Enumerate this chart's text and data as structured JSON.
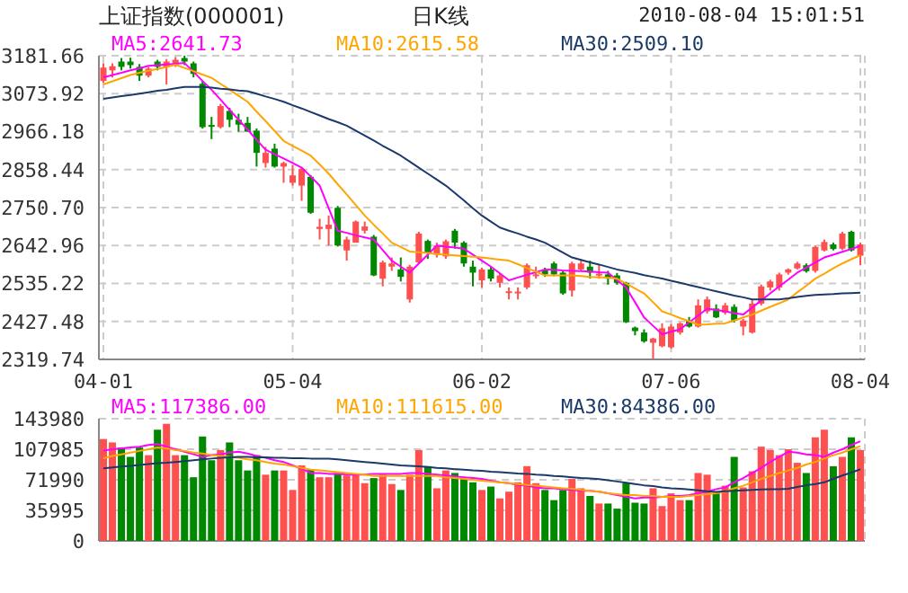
{
  "chart_data": [
    {
      "type": "candlestick",
      "title": "上证指数(000001)",
      "subtitle": "日K线",
      "annotations": [
        "2010-08-04 15:01:51"
      ],
      "categories": [
        "04-01",
        null,
        null,
        null,
        null,
        null,
        null,
        null,
        null,
        null,
        null,
        null,
        null,
        null,
        null,
        null,
        null,
        null,
        null,
        null,
        null,
        "05-04",
        null,
        null,
        null,
        null,
        null,
        null,
        null,
        null,
        null,
        null,
        null,
        null,
        null,
        null,
        null,
        null,
        null,
        null,
        null,
        null,
        "06-02",
        null,
        null,
        null,
        null,
        null,
        null,
        null,
        null,
        null,
        null,
        null,
        null,
        null,
        null,
        null,
        null,
        null,
        null,
        null,
        null,
        "07-06",
        null,
        null,
        null,
        null,
        null,
        null,
        null,
        null,
        null,
        null,
        null,
        null,
        null,
        null,
        null,
        null,
        null,
        null,
        null,
        null,
        "08-04"
      ],
      "ylim": [
        2319.74,
        3181.66
      ],
      "yticks": [
        2319.74,
        2427.48,
        2535.22,
        2642.96,
        {
          "value": 2750.7,
          "label": "2750.70"
        },
        2858.44,
        2966.18,
        3073.92,
        3181.66
      ],
      "ohlc": [
        [
          3110,
          3160,
          3105,
          3148
        ],
        [
          3140,
          3160,
          3120,
          3152
        ],
        [
          3165,
          3175,
          3140,
          3150
        ],
        [
          3165,
          3176,
          3145,
          3155
        ],
        [
          3150,
          3158,
          3110,
          3125
        ],
        [
          3125,
          3150,
          3120,
          3145
        ],
        [
          3165,
          3170,
          3140,
          3150
        ],
        [
          3150,
          3172,
          3100,
          3165
        ],
        [
          3160,
          3178,
          3150,
          3170
        ],
        [
          3175,
          3181.66,
          3155,
          3165
        ],
        [
          3160,
          3165,
          3120,
          3130
        ],
        [
          3102,
          3110,
          2975,
          2979
        ],
        [
          2985,
          3008,
          2945,
          2980
        ],
        [
          2979,
          3045,
          2975,
          3039
        ],
        [
          3025,
          3034,
          2979,
          3000
        ],
        [
          3000,
          3017,
          2966,
          2986
        ],
        [
          2991,
          3008,
          2966,
          2966
        ],
        [
          2969,
          2975,
          2867,
          2906
        ],
        [
          2877,
          2923,
          2864,
          2906
        ],
        [
          2918,
          2932,
          2864,
          2867
        ],
        [
          2867,
          2881,
          2821,
          2877
        ],
        [
          2821,
          2872,
          2813,
          2842
        ],
        [
          2813,
          2865,
          2770,
          2860
        ],
        [
          2838,
          2843,
          2733,
          2736
        ],
        [
          2690,
          2719,
          2660,
          2696
        ],
        [
          2690,
          2728,
          2643,
          2702
        ],
        [
          2750,
          2755,
          2640,
          2643
        ],
        [
          2629,
          2668,
          2600,
          2660
        ],
        [
          2651,
          2714,
          2651,
          2711
        ],
        [
          2685,
          2711,
          2677,
          2697
        ],
        [
          2668,
          2673,
          2556,
          2558
        ],
        [
          2549,
          2600,
          2527,
          2595
        ],
        [
          2583,
          2609,
          2571,
          2592
        ],
        [
          2575,
          2609,
          2541,
          2554
        ],
        [
          2490,
          2588,
          2481,
          2583
        ],
        [
          2595,
          2682,
          2592,
          2677
        ],
        [
          2656,
          2660,
          2605,
          2622
        ],
        [
          2617,
          2651,
          2609,
          2643
        ],
        [
          2612,
          2660,
          2605,
          2655
        ],
        [
          2685,
          2690,
          2634,
          2651
        ],
        [
          2651,
          2655,
          2583,
          2592
        ],
        [
          2583,
          2600,
          2527,
          2566
        ],
        [
          2544,
          2580,
          2524,
          2575
        ],
        [
          2575,
          2583,
          2541,
          2549
        ],
        [
          2537,
          2565,
          2524,
          2558
        ],
        [
          2508,
          2524,
          2490,
          2513
        ],
        [
          2508,
          2524,
          2490,
          2512
        ],
        [
          2524,
          2592,
          2519,
          2587
        ],
        [
          2558,
          2583,
          2549,
          2561
        ],
        [
          2575,
          2580,
          2554,
          2561
        ],
        [
          2592,
          2597,
          2556,
          2561
        ],
        [
          2566,
          2570,
          2503,
          2507
        ],
        [
          2515,
          2597,
          2498,
          2592
        ],
        [
          2575,
          2600,
          2570,
          2592
        ],
        [
          2583,
          2600,
          2549,
          2566
        ],
        [
          2558,
          2588,
          2549,
          2563
        ],
        [
          2561,
          2571,
          2532,
          2549
        ],
        [
          2558,
          2565,
          2532,
          2537
        ],
        [
          2537,
          2540,
          2423,
          2425
        ],
        [
          2410,
          2413,
          2388,
          2400
        ],
        [
          2396,
          2405,
          2367,
          2371
        ],
        [
          2367,
          2381,
          2319.74,
          2379
        ],
        [
          2357,
          2422,
          2354,
          2408
        ],
        [
          2354,
          2420,
          2350,
          2413
        ],
        [
          2396,
          2425,
          2390,
          2422
        ],
        [
          2430,
          2440,
          2410,
          2413
        ],
        [
          2413,
          2490,
          2410,
          2473
        ],
        [
          2456,
          2498,
          2450,
          2490
        ],
        [
          2464,
          2476,
          2437,
          2439
        ],
        [
          2452,
          2480,
          2447,
          2473
        ],
        [
          2469,
          2476,
          2425,
          2430
        ],
        [
          2413,
          2435,
          2388,
          2430
        ],
        [
          2396,
          2490,
          2393,
          2478
        ],
        [
          2478,
          2532,
          2473,
          2527
        ],
        [
          2524,
          2546,
          2515,
          2541
        ],
        [
          2524,
          2566,
          2515,
          2561
        ],
        [
          2566,
          2578,
          2560,
          2575
        ],
        [
          2578,
          2597,
          2575,
          2592
        ],
        [
          2587,
          2592,
          2566,
          2570
        ],
        [
          2571,
          2643,
          2566,
          2639
        ],
        [
          2629,
          2660,
          2626,
          2653
        ],
        [
          2646,
          2651,
          2629,
          2633
        ],
        [
          2634,
          2682,
          2630,
          2677
        ],
        [
          2682,
          2685,
          2626,
          2629
        ],
        [
          2614,
          2651,
          2587,
          2646
        ]
      ],
      "colors": [
        "#ff5050",
        "#ff5050",
        "#008800",
        "#008800",
        "#008800",
        "#ff5050",
        "#008800",
        "#ff5050",
        "#ff5050",
        "#008800",
        "#008800",
        "#008800",
        "#008800",
        "#ff5050",
        "#008800",
        "#008800",
        "#008800",
        "#008800",
        "#ff5050",
        "#008800",
        "#ff5050",
        "#ff5050",
        "#ff5050",
        "#008800",
        "#ff5050",
        "#ff5050",
        "#008800",
        "#ff5050",
        "#ff5050",
        "#ff5050",
        "#008800",
        "#ff5050",
        "#ff5050",
        "#008800",
        "#ff5050",
        "#ff5050",
        "#008800",
        "#ff5050",
        "#ff5050",
        "#008800",
        "#008800",
        "#008800",
        "#ff5050",
        "#008800",
        "#ff5050",
        "#ff5050",
        "#ff5050",
        "#ff5050",
        "#ff5050",
        "#008800",
        "#008800",
        "#008800",
        "#ff5050",
        "#ff5050",
        "#008800",
        "#ff5050",
        "#008800",
        "#008800",
        "#008800",
        "#008800",
        "#008800",
        "#ff5050",
        "#ff5050",
        "#ff5050",
        "#ff5050",
        "#008800",
        "#ff5050",
        "#ff5050",
        "#008800",
        "#ff5050",
        "#008800",
        "#ff5050",
        "#ff5050",
        "#ff5050",
        "#ff5050",
        "#ff5050",
        "#ff5050",
        "#ff5050",
        "#008800",
        "#ff5050",
        "#ff5050",
        "#008800",
        "#ff5050",
        "#008800",
        "#ff5050"
      ],
      "series": [
        {
          "type": "line",
          "name": "MA5:2641.73",
          "color": "#ff00ff",
          "values": [
            3120,
            3127,
            3133,
            3140,
            3146,
            3153,
            3155,
            3157,
            3159,
            3161,
            3136,
            3110,
            3085,
            3057,
            3028,
            3000,
            2972,
            2943,
            2915,
            2902,
            2890,
            2877,
            2864,
            2839,
            2813,
            2749,
            2685,
            2679,
            2672,
            2666,
            2660,
            2630,
            2600,
            2583,
            2566,
            2592,
            2617,
            2643,
            2640,
            2637,
            2634,
            2617,
            2600,
            2583,
            2564,
            2544,
            2552,
            2560,
            2567,
            2575,
            2574,
            2572,
            2571,
            2570,
            2569,
            2567,
            2566,
            2545,
            2524,
            2482,
            2439,
            2415,
            2391,
            2398,
            2405,
            2425,
            2444,
            2464,
            2460,
            2456,
            2451,
            2447,
            2467,
            2487,
            2507,
            2527,
            2546,
            2566,
            2580,
            2595,
            2609,
            2617,
            2625,
            2633,
            2641.73
          ]
        },
        {
          "type": "line",
          "name": "MA10:2615.58",
          "color": "#ffa500",
          "values": [
            3100,
            3109,
            3118,
            3127,
            3133,
            3139,
            3144,
            3150,
            3156,
            3147,
            3138,
            3128,
            3119,
            3102,
            3085,
            3068,
            3051,
            3023,
            2996,
            2968,
            2940,
            2926,
            2912,
            2898,
            2873,
            2847,
            2817,
            2788,
            2758,
            2728,
            2702,
            2677,
            2651,
            2639,
            2626,
            2624,
            2622,
            2619,
            2617,
            2615,
            2613,
            2611,
            2609,
            2606,
            2603,
            2600,
            2590,
            2579,
            2569,
            2558,
            2558,
            2558,
            2558,
            2556,
            2554,
            2553,
            2551,
            2549,
            2535,
            2521,
            2507,
            2482,
            2456,
            2447,
            2437,
            2428,
            2418,
            2419,
            2421,
            2422,
            2430,
            2439,
            2447,
            2458,
            2469,
            2479,
            2490,
            2510,
            2529,
            2549,
            2563,
            2578,
            2592,
            2604,
            2615.58
          ]
        },
        {
          "type": "line",
          "name": "MA30:2509.10",
          "color": "#1a3a6a",
          "values": [
            3059,
            3063,
            3067,
            3070,
            3074,
            3078,
            3082,
            3085,
            3089,
            3093,
            3093,
            3093,
            3091,
            3088,
            3086,
            3083,
            3081,
            3074,
            3066,
            3059,
            3051,
            3041,
            3032,
            3022,
            3012,
            3002,
            2993,
            2983,
            2969,
            2955,
            2941,
            2926,
            2912,
            2898,
            2881,
            2864,
            2847,
            2830,
            2813,
            2792,
            2771,
            2749,
            2728,
            2711,
            2694,
            2685,
            2677,
            2668,
            2660,
            2651,
            2637,
            2623,
            2609,
            2602,
            2595,
            2589,
            2582,
            2575,
            2570,
            2565,
            2559,
            2554,
            2549,
            2543,
            2537,
            2531,
            2525,
            2519,
            2513,
            2507,
            2501,
            2496,
            2490,
            2490,
            2490,
            2490,
            2493,
            2497,
            2500,
            2503,
            2504,
            2505,
            2507,
            2508,
            2509.1
          ]
        }
      ],
      "grid": true,
      "legend": "top"
    },
    {
      "type": "bar",
      "ylim": [
        0,
        143980
      ],
      "yticks": [
        0,
        35995,
        71990,
        107985,
        143980
      ],
      "values": [
        120000,
        116000,
        110000,
        99000,
        110000,
        101000,
        131000,
        138000,
        101000,
        101000,
        75000,
        123000,
        95000,
        107000,
        116000,
        95000,
        83000,
        101000,
        78000,
        83000,
        83000,
        60000,
        89000,
        84000,
        75000,
        75000,
        80000,
        77000,
        78000,
        68000,
        74000,
        78000,
        67000,
        60000,
        78000,
        107000,
        88000,
        62000,
        83000,
        80000,
        73000,
        69000,
        60000,
        64000,
        50000,
        58000,
        69000,
        88000,
        68000,
        60000,
        48000,
        60000,
        73000,
        62000,
        53000,
        44000,
        44000,
        38000,
        68000,
        45000,
        44000,
        62000,
        41000,
        56000,
        48000,
        48000,
        80000,
        78000,
        56000,
        65000,
        99000,
        63000,
        82000,
        111000,
        107000,
        101000,
        108000,
        92000,
        80000,
        122000,
        131000,
        88000,
        99000,
        122000,
        107000
      ],
      "colors": [
        "#ff5050",
        "#ff5050",
        "#008800",
        "#008800",
        "#008800",
        "#ff5050",
        "#008800",
        "#ff5050",
        "#ff5050",
        "#008800",
        "#008800",
        "#008800",
        "#008800",
        "#ff5050",
        "#008800",
        "#008800",
        "#008800",
        "#008800",
        "#ff5050",
        "#008800",
        "#ff5050",
        "#ff5050",
        "#ff5050",
        "#008800",
        "#ff5050",
        "#ff5050",
        "#008800",
        "#ff5050",
        "#ff5050",
        "#ff5050",
        "#008800",
        "#ff5050",
        "#ff5050",
        "#008800",
        "#ff5050",
        "#ff5050",
        "#008800",
        "#ff5050",
        "#ff5050",
        "#008800",
        "#008800",
        "#008800",
        "#ff5050",
        "#008800",
        "#ff5050",
        "#ff5050",
        "#ff5050",
        "#ff5050",
        "#ff5050",
        "#008800",
        "#008800",
        "#008800",
        "#ff5050",
        "#ff5050",
        "#008800",
        "#ff5050",
        "#008800",
        "#008800",
        "#008800",
        "#008800",
        "#008800",
        "#ff5050",
        "#ff5050",
        "#ff5050",
        "#ff5050",
        "#008800",
        "#ff5050",
        "#ff5050",
        "#008800",
        "#ff5050",
        "#008800",
        "#ff5050",
        "#ff5050",
        "#ff5050",
        "#ff5050",
        "#ff5050",
        "#ff5050",
        "#ff5050",
        "#008800",
        "#ff5050",
        "#ff5050",
        "#008800",
        "#ff5050",
        "#008800",
        "#ff5050"
      ],
      "series": [
        {
          "type": "line",
          "name": "MA5:117386.00",
          "color": "#ff00ff",
          "values": [
            106500,
            108000,
            109000,
            110000,
            111000,
            113000,
            114000,
            111000,
            108000,
            105000,
            102000,
            99000,
            101000,
            102000,
            104000,
            105000,
            103000,
            100000,
            98000,
            95000,
            93000,
            89000,
            85000,
            80000,
            80000,
            79000,
            79000,
            78000,
            78000,
            78000,
            79000,
            79000,
            79000,
            79000,
            80000,
            80000,
            79000,
            78000,
            77000,
            76000,
            75000,
            74000,
            73000,
            71000,
            69000,
            68000,
            66000,
            65000,
            63000,
            62000,
            62000,
            61000,
            60000,
            59000,
            59000,
            58000,
            56000,
            54000,
            52000,
            50000,
            51000,
            51000,
            52000,
            53000,
            53000,
            54000,
            56000,
            58000,
            61000,
            63000,
            69000,
            74000,
            80000,
            86000,
            93000,
            99000,
            105000,
            104000,
            102000,
            101000,
            99000,
            104000,
            108000,
            113000,
            117386
          ]
        },
        {
          "type": "line",
          "name": "MA10:111615.00",
          "color": "#ffa500",
          "values": [
            97500,
            100000,
            102000,
            104000,
            106000,
            108000,
            110000,
            109000,
            107000,
            106000,
            104000,
            103000,
            101000,
            100000,
            99000,
            98000,
            96000,
            95000,
            93000,
            91000,
            90000,
            88000,
            86000,
            84000,
            83000,
            82000,
            81000,
            80000,
            79000,
            78000,
            76500,
            76500,
            76500,
            76500,
            76500,
            76500,
            76500,
            76500,
            75000,
            74000,
            73000,
            72000,
            71000,
            70000,
            69000,
            68000,
            67000,
            66000,
            65000,
            64000,
            63000,
            62000,
            61500,
            60000,
            59000,
            58000,
            56000,
            55000,
            54000,
            54000,
            53000,
            53000,
            52000,
            52000,
            52000,
            53000,
            54000,
            55000,
            56000,
            58000,
            62000,
            65000,
            69000,
            73000,
            76500,
            80000,
            83000,
            86000,
            90000,
            93000,
            97000,
            101000,
            104000,
            108000,
            111615
          ]
        },
        {
          "type": "line",
          "name": "MA30:84386.00",
          "color": "#1a3a6a",
          "values": [
            85500,
            86500,
            87500,
            88500,
            89500,
            90500,
            91500,
            92000,
            93000,
            94000,
            95000,
            96000,
            97000,
            98000,
            98500,
            99000,
            99000,
            98500,
            98500,
            98000,
            98000,
            97500,
            97500,
            97000,
            97000,
            96750,
            96000,
            95000,
            94000,
            93000,
            92000,
            91000,
            90000,
            89000,
            88500,
            87750,
            87000,
            86000,
            85500,
            84500,
            84000,
            83000,
            82500,
            81500,
            81000,
            80250,
            79500,
            79000,
            78000,
            77500,
            76500,
            76000,
            75000,
            74000,
            73500,
            72750,
            71500,
            70000,
            68500,
            67000,
            65500,
            64500,
            63000,
            62000,
            61500,
            60500,
            59500,
            58500,
            57750,
            58500,
            59000,
            59500,
            60000,
            60500,
            61000,
            61000,
            61500,
            63500,
            65500,
            67000,
            69000,
            73000,
            77000,
            80500,
            84386
          ]
        }
      ],
      "grid": true,
      "legend": "top",
      "tick_labels": "y"
    }
  ]
}
